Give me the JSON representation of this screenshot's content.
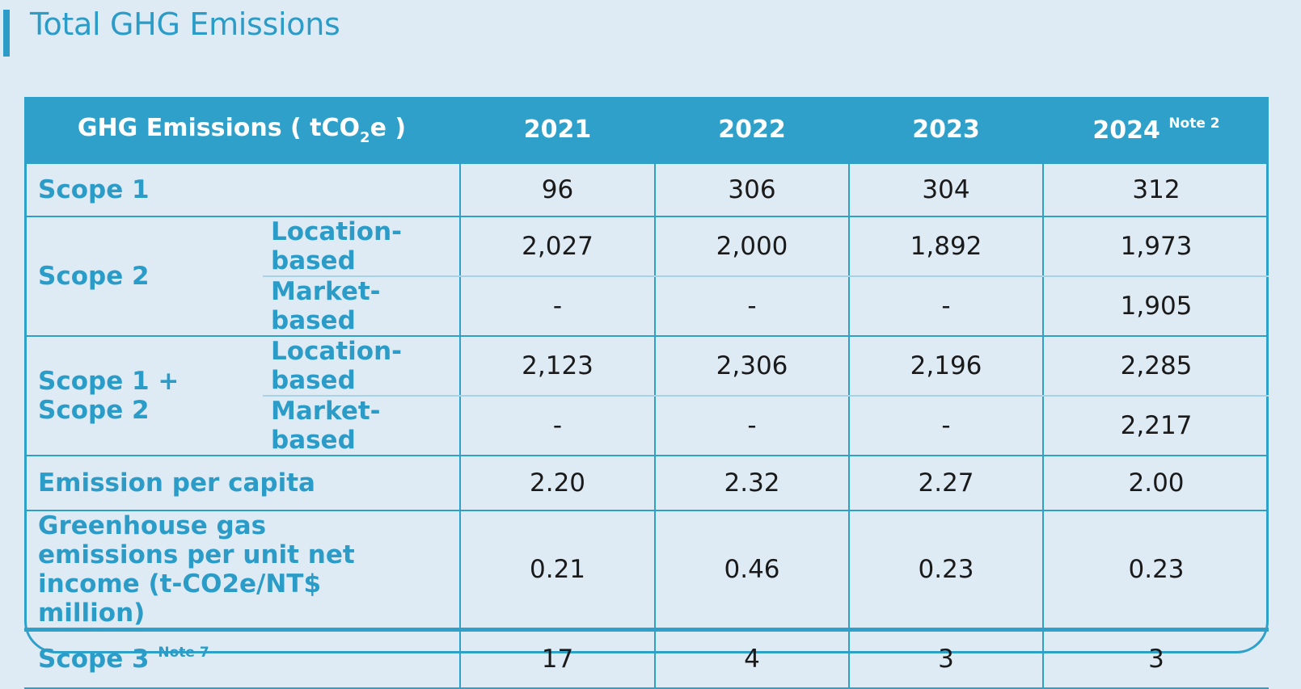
{
  "page_title": "Total GHG Emissions",
  "header": {
    "metric_prefix": "GHG Emissions ( tCO",
    "metric_sub": "2",
    "metric_suffix": "e )",
    "years": [
      "2021",
      "2022",
      "2023",
      "2024"
    ],
    "note_2024": "Note 2"
  },
  "rows": {
    "scope1": {
      "label": "Scope 1",
      "values": [
        "96",
        "306",
        "304",
        "312"
      ]
    },
    "scope2": {
      "label": "Scope 2",
      "location": {
        "label": "Location-based",
        "values": [
          "2,027",
          "2,000",
          "1,892",
          "1,973"
        ]
      },
      "market": {
        "label": "Market-based",
        "values": [
          "-",
          "-",
          "-",
          "1,905"
        ]
      }
    },
    "scope12": {
      "label": "Scope 1 + Scope 2",
      "location": {
        "label": "Location-based",
        "values": [
          "2,123",
          "2,306",
          "2,196",
          "2,285"
        ]
      },
      "market": {
        "label": "Market-based",
        "values": [
          "-",
          "-",
          "-",
          "2,217"
        ]
      }
    },
    "per_capita": {
      "label": "Emission per capita",
      "values": [
        "2.20",
        "2.32",
        "2.27",
        "2.00"
      ]
    },
    "per_income": {
      "label": "Greenhouse gas emissions per unit net income (t-CO2e/NT$ million)",
      "values": [
        "0.21",
        "0.46",
        "0.23",
        "0.23"
      ]
    },
    "scope3": {
      "label": "Scope 3",
      "note": "Note 7",
      "values": [
        "17",
        "4",
        "3",
        "3"
      ]
    }
  }
}
